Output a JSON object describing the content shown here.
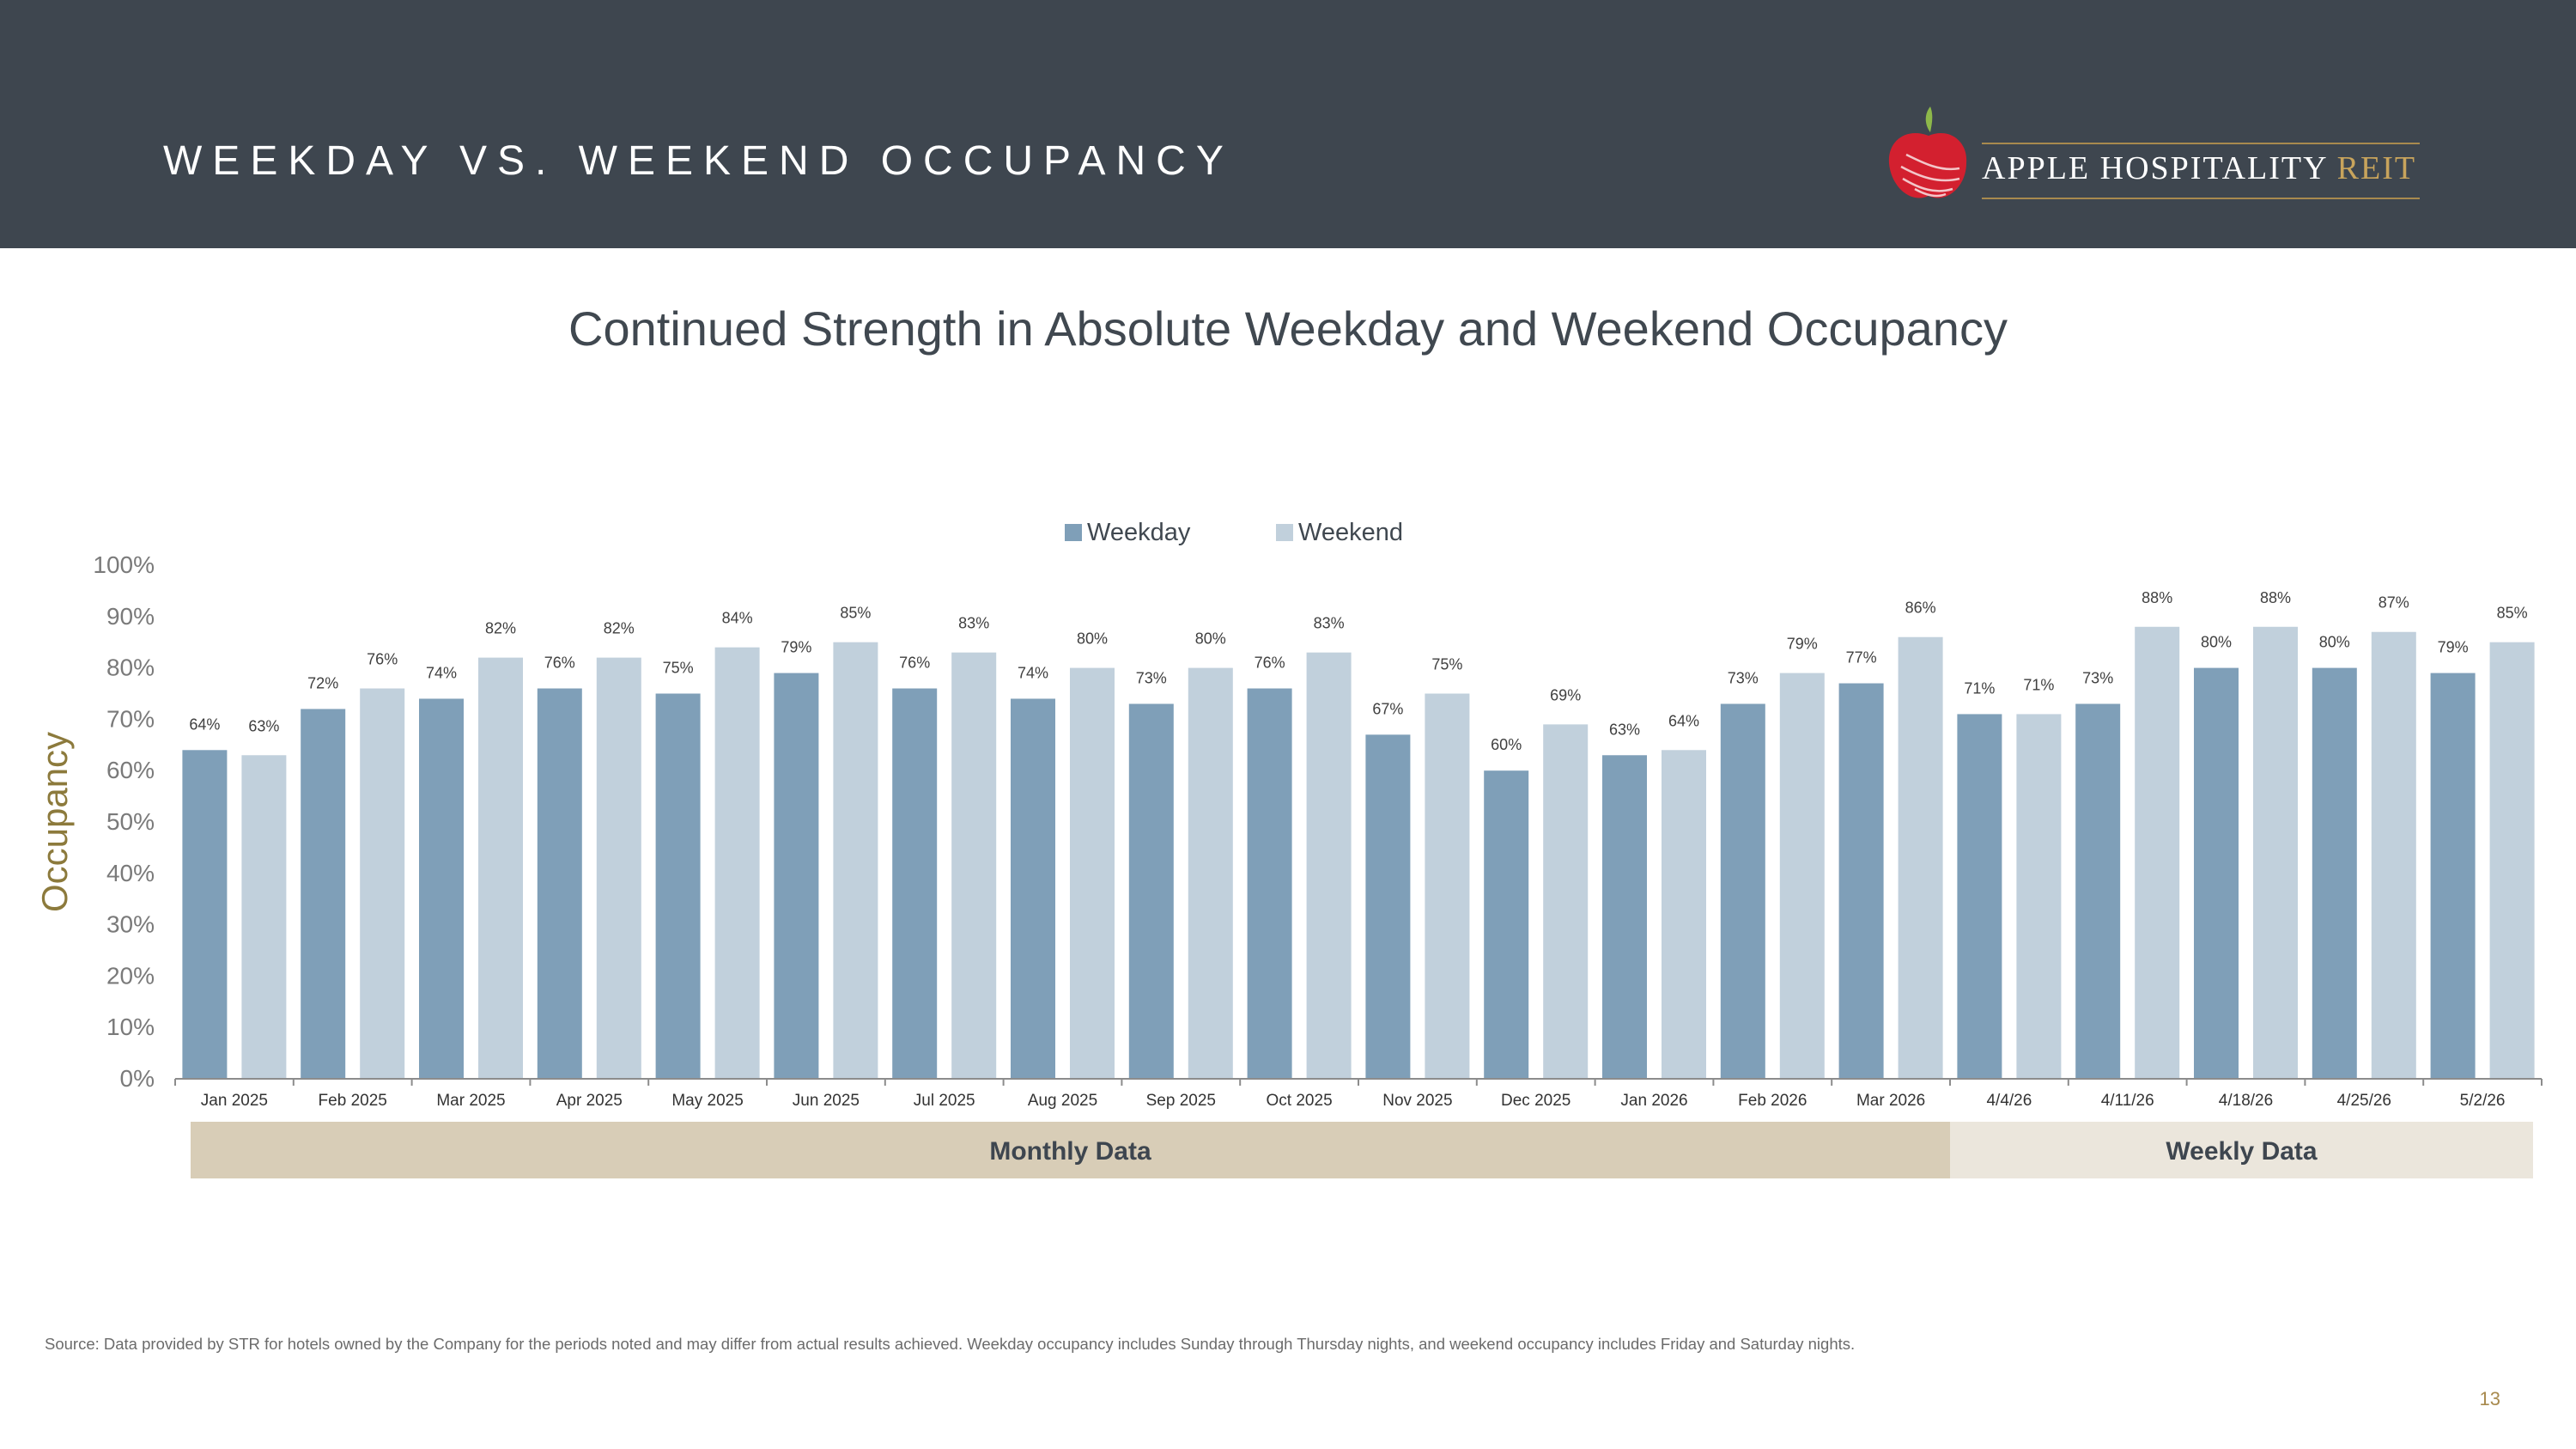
{
  "header": {
    "title": "WEEKDAY VS. WEEKEND OCCUPANCY",
    "logo_text": "APPLE HOSPITALITY",
    "logo_suffix": "REIT"
  },
  "subtitle": "Continued Strength in Absolute Weekday and Weekend Occupancy",
  "colors": {
    "header_bg": "#3e464f",
    "weekday": "#7f9fb8",
    "weekend": "#c1d0dc",
    "monthly_band": "#d8cdb7",
    "weekly_band": "#ebe6dc",
    "accent_gold": "#a88a4e",
    "ylabel": "#8c7a3c"
  },
  "chart_data": {
    "type": "bar",
    "categories": [
      "Jan 2025",
      "Feb 2025",
      "Mar 2025",
      "Apr 2025",
      "May 2025",
      "Jun 2025",
      "Jul 2025",
      "Aug 2025",
      "Sep 2025",
      "Oct 2025",
      "Nov 2025",
      "Dec 2025",
      "Jan 2026",
      "Feb 2026",
      "Mar 2026",
      "4/4/26",
      "4/11/26",
      "4/18/26",
      "4/25/26",
      "5/2/26"
    ],
    "series": [
      {
        "name": "Weekday",
        "values": [
          64,
          72,
          74,
          76,
          75,
          79,
          76,
          74,
          73,
          76,
          67,
          60,
          63,
          73,
          77,
          71,
          73,
          80,
          80,
          79
        ]
      },
      {
        "name": "Weekend",
        "values": [
          63,
          76,
          82,
          82,
          84,
          85,
          83,
          80,
          80,
          83,
          75,
          69,
          64,
          79,
          86,
          71,
          88,
          88,
          87,
          85
        ]
      }
    ],
    "ylabel": "Occupancy",
    "xlabel": "",
    "ylim": [
      0,
      100
    ],
    "yticks": [
      "0%",
      "10%",
      "20%",
      "30%",
      "40%",
      "50%",
      "60%",
      "70%",
      "80%",
      "90%",
      "100%"
    ],
    "value_suffix": "%",
    "legend_position": "top-center",
    "grid": false,
    "groups": [
      {
        "label": "Monthly Data",
        "start_index": 0,
        "end_index": 14
      },
      {
        "label": "Weekly Data",
        "start_index": 15,
        "end_index": 19
      }
    ]
  },
  "footer": {
    "source": "Source:  Data provided by STR for hotels owned by the Company for the periods noted and may differ from actual results achieved. Weekday occupancy includes Sunday through Thursday nights, and weekend occupancy includes Friday and Saturday nights.",
    "page_number": "13"
  }
}
